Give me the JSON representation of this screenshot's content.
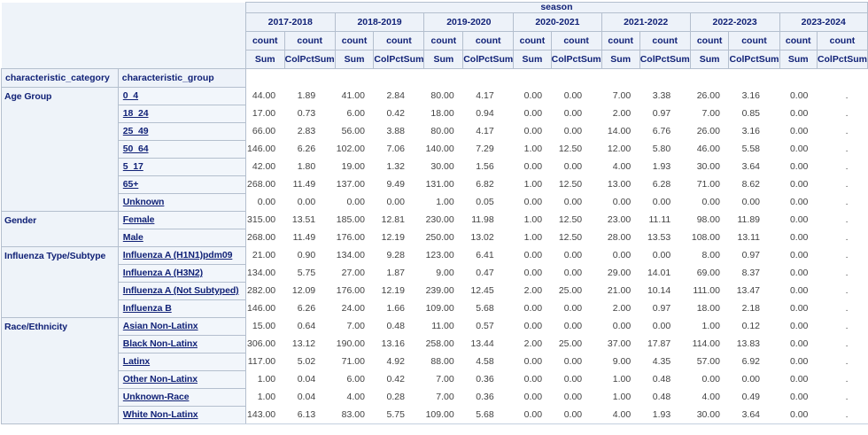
{
  "colors": {
    "header_background": "#edf2f9",
    "header_text": "#112277",
    "cell_border": "#b4bfce",
    "value_text": "#424242"
  },
  "table": {
    "band_label": "season",
    "corner": {
      "category": "characteristic_category",
      "group": "characteristic_group"
    },
    "seasons": [
      "2017-2018",
      "2018-2019",
      "2019-2020",
      "2020-2021",
      "2021-2022",
      "2022-2023",
      "2023-2024"
    ],
    "count_label": "count",
    "sum_label": "Sum",
    "pct_label": "ColPctSum",
    "groups": [
      {
        "category": "Age Group",
        "rows": [
          {
            "label": "0_4",
            "cells": [
              "44.00",
              "1.89",
              "41.00",
              "2.84",
              "80.00",
              "4.17",
              "0.00",
              "0.00",
              "7.00",
              "3.38",
              "26.00",
              "3.16",
              "0.00",
              "."
            ]
          },
          {
            "label": "18_24",
            "cells": [
              "17.00",
              "0.73",
              "6.00",
              "0.42",
              "18.00",
              "0.94",
              "0.00",
              "0.00",
              "2.00",
              "0.97",
              "7.00",
              "0.85",
              "0.00",
              "."
            ]
          },
          {
            "label": "25_49",
            "cells": [
              "66.00",
              "2.83",
              "56.00",
              "3.88",
              "80.00",
              "4.17",
              "0.00",
              "0.00",
              "14.00",
              "6.76",
              "26.00",
              "3.16",
              "0.00",
              "."
            ]
          },
          {
            "label": "50_64",
            "cells": [
              "146.00",
              "6.26",
              "102.00",
              "7.06",
              "140.00",
              "7.29",
              "1.00",
              "12.50",
              "12.00",
              "5.80",
              "46.00",
              "5.58",
              "0.00",
              "."
            ]
          },
          {
            "label": "5_17",
            "cells": [
              "42.00",
              "1.80",
              "19.00",
              "1.32",
              "30.00",
              "1.56",
              "0.00",
              "0.00",
              "4.00",
              "1.93",
              "30.00",
              "3.64",
              "0.00",
              "."
            ]
          },
          {
            "label": "65+",
            "cells": [
              "268.00",
              "11.49",
              "137.00",
              "9.49",
              "131.00",
              "6.82",
              "1.00",
              "12.50",
              "13.00",
              "6.28",
              "71.00",
              "8.62",
              "0.00",
              "."
            ]
          },
          {
            "label": "Unknown",
            "cells": [
              "0.00",
              "0.00",
              "0.00",
              "0.00",
              "1.00",
              "0.05",
              "0.00",
              "0.00",
              "0.00",
              "0.00",
              "0.00",
              "0.00",
              "0.00",
              "."
            ]
          }
        ]
      },
      {
        "category": "Gender",
        "rows": [
          {
            "label": "Female",
            "cells": [
              "315.00",
              "13.51",
              "185.00",
              "12.81",
              "230.00",
              "11.98",
              "1.00",
              "12.50",
              "23.00",
              "11.11",
              "98.00",
              "11.89",
              "0.00",
              "."
            ]
          },
          {
            "label": "Male",
            "cells": [
              "268.00",
              "11.49",
              "176.00",
              "12.19",
              "250.00",
              "13.02",
              "1.00",
              "12.50",
              "28.00",
              "13.53",
              "108.00",
              "13.11",
              "0.00",
              "."
            ]
          }
        ]
      },
      {
        "category": "Influenza Type/Subtype",
        "rows": [
          {
            "label": "Influenza A (H1N1)pdm09",
            "cells": [
              "21.00",
              "0.90",
              "134.00",
              "9.28",
              "123.00",
              "6.41",
              "0.00",
              "0.00",
              "0.00",
              "0.00",
              "8.00",
              "0.97",
              "0.00",
              "."
            ]
          },
          {
            "label": "Influenza A (H3N2)",
            "cells": [
              "134.00",
              "5.75",
              "27.00",
              "1.87",
              "9.00",
              "0.47",
              "0.00",
              "0.00",
              "29.00",
              "14.01",
              "69.00",
              "8.37",
              "0.00",
              "."
            ]
          },
          {
            "label": "Influenza A (Not Subtyped)",
            "cells": [
              "282.00",
              "12.09",
              "176.00",
              "12.19",
              "239.00",
              "12.45",
              "2.00",
              "25.00",
              "21.00",
              "10.14",
              "111.00",
              "13.47",
              "0.00",
              "."
            ]
          },
          {
            "label": "Influenza B",
            "cells": [
              "146.00",
              "6.26",
              "24.00",
              "1.66",
              "109.00",
              "5.68",
              "0.00",
              "0.00",
              "2.00",
              "0.97",
              "18.00",
              "2.18",
              "0.00",
              "."
            ]
          }
        ]
      },
      {
        "category": "Race/Ethnicity",
        "rows": [
          {
            "label": "Asian Non-Latinx",
            "cells": [
              "15.00",
              "0.64",
              "7.00",
              "0.48",
              "11.00",
              "0.57",
              "0.00",
              "0.00",
              "0.00",
              "0.00",
              "1.00",
              "0.12",
              "0.00",
              "."
            ]
          },
          {
            "label": "Black Non-Latinx",
            "cells": [
              "306.00",
              "13.12",
              "190.00",
              "13.16",
              "258.00",
              "13.44",
              "2.00",
              "25.00",
              "37.00",
              "17.87",
              "114.00",
              "13.83",
              "0.00",
              "."
            ]
          },
          {
            "label": "Latinx",
            "cells": [
              "117.00",
              "5.02",
              "71.00",
              "4.92",
              "88.00",
              "4.58",
              "0.00",
              "0.00",
              "9.00",
              "4.35",
              "57.00",
              "6.92",
              "0.00",
              "."
            ]
          },
          {
            "label": "Other Non-Latinx",
            "cells": [
              "1.00",
              "0.04",
              "6.00",
              "0.42",
              "7.00",
              "0.36",
              "0.00",
              "0.00",
              "1.00",
              "0.48",
              "0.00",
              "0.00",
              "0.00",
              "."
            ]
          },
          {
            "label": "Unknown-Race",
            "cells": [
              "1.00",
              "0.04",
              "4.00",
              "0.28",
              "7.00",
              "0.36",
              "0.00",
              "0.00",
              "1.00",
              "0.48",
              "4.00",
              "0.49",
              "0.00",
              "."
            ]
          },
          {
            "label": "White Non-Latinx",
            "cells": [
              "143.00",
              "6.13",
              "83.00",
              "5.75",
              "109.00",
              "5.68",
              "0.00",
              "0.00",
              "4.00",
              "1.93",
              "30.00",
              "3.64",
              "0.00",
              "."
            ]
          }
        ]
      }
    ]
  }
}
